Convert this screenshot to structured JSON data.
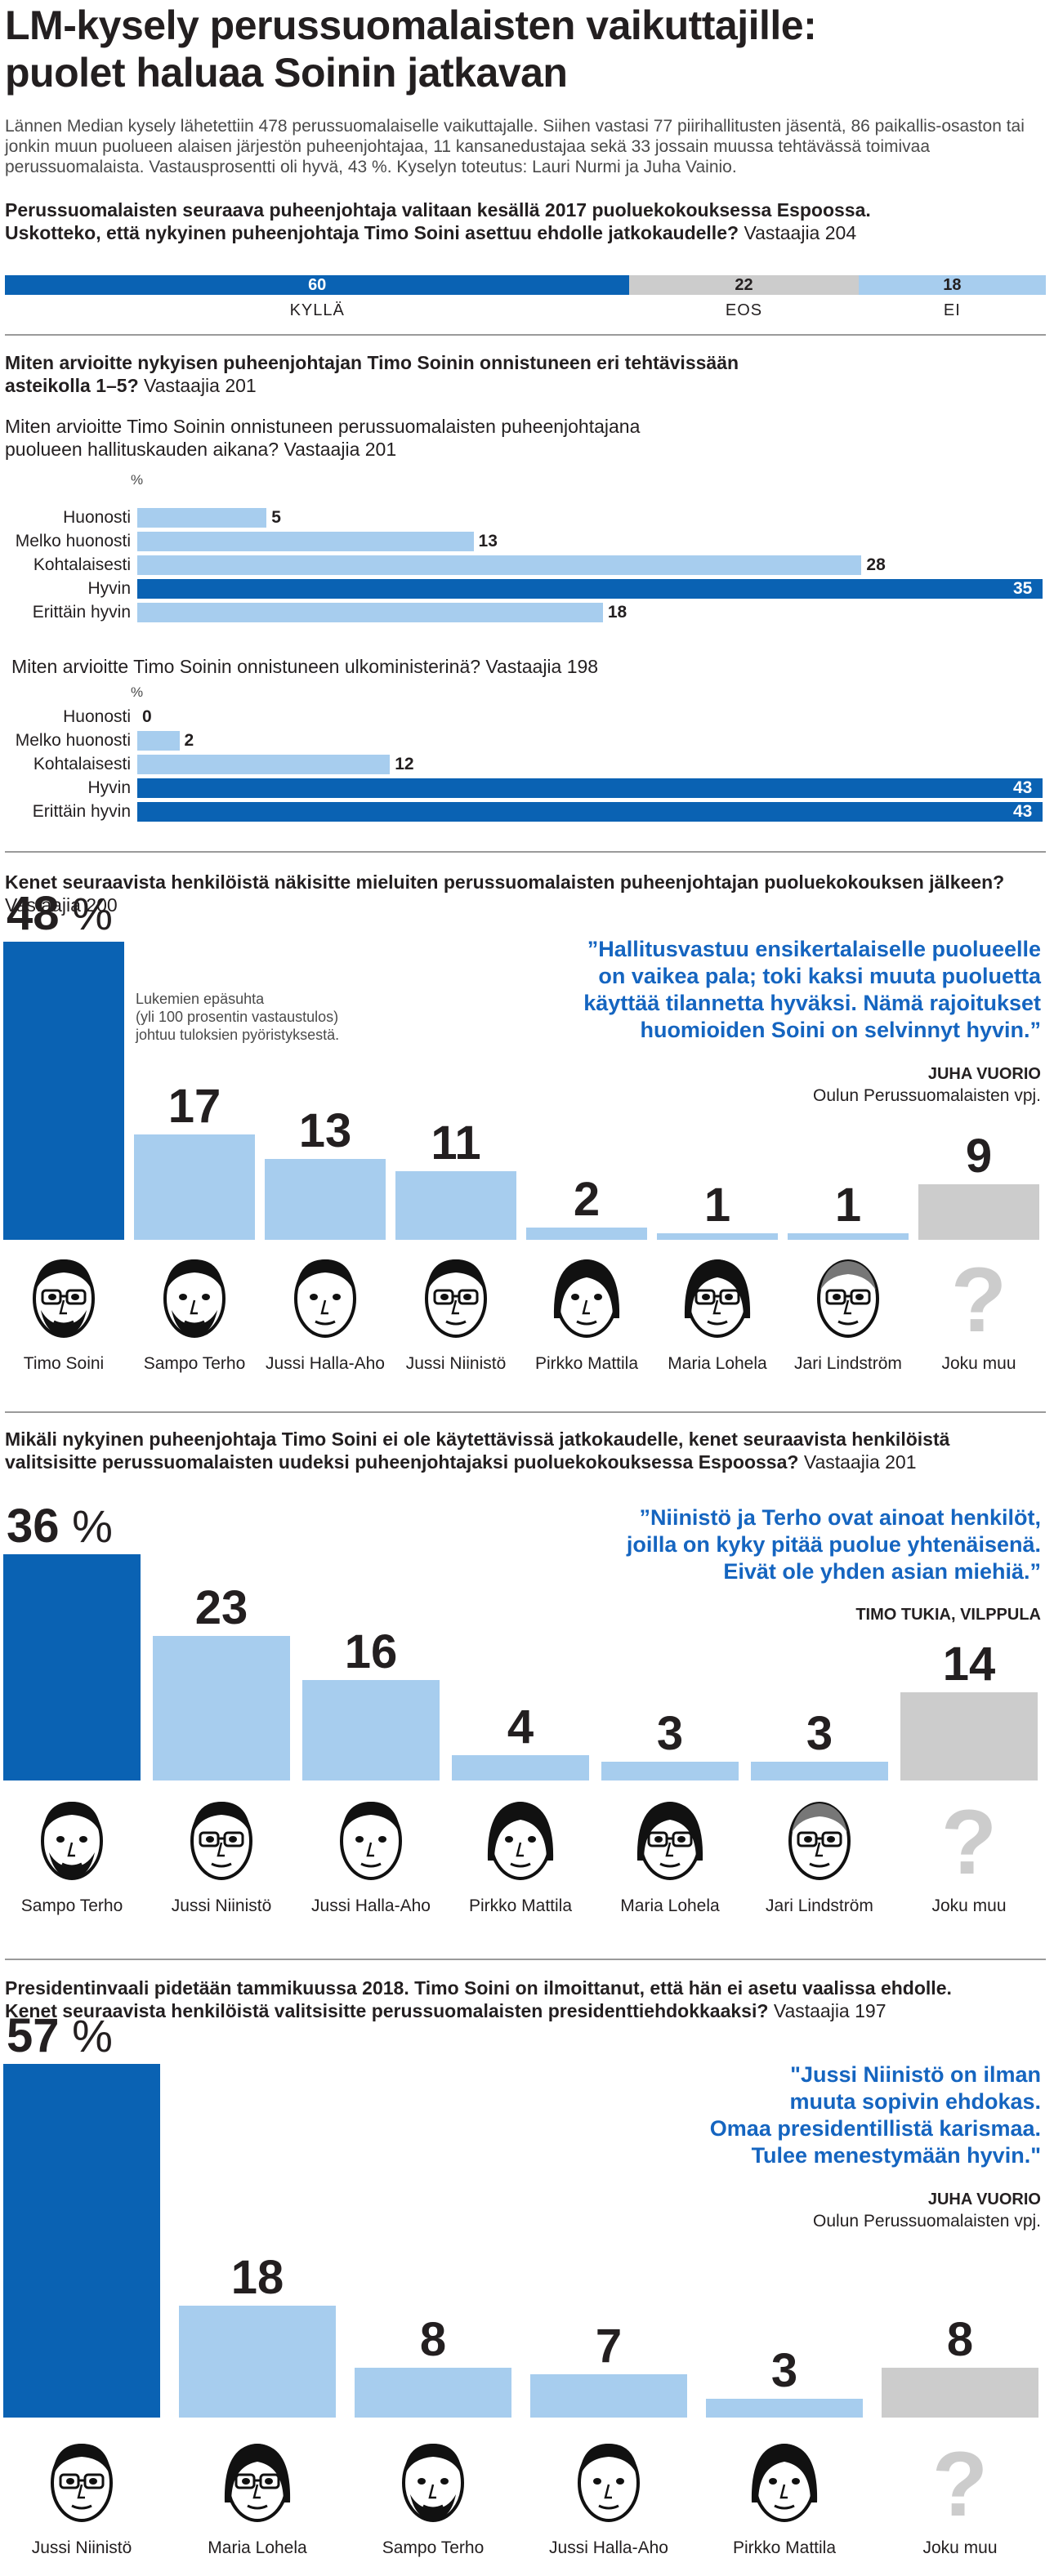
{
  "header": {
    "title_line1": "LM-kysely perussuomalaisten vaikuttajille:",
    "title_line2": "puolet haluaa Soinin jatkavan",
    "intro": "Lännen Median kysely lähetettiin 478 perussuomalaiselle vaikuttajalle. Siihen vastasi 77 piirihallitusten jäsentä, 86 paikallis-osaston tai jonkin muun puolueen alaisen järjestön puheenjohtajaa, 11 kansanedustajaa sekä 33 jossain muussa tehtävässä toimivaa perussuomalaista. Vastausprosentti oli hyvä, 43 %. Kyselyn toteutus: Lauri Nurmi ja Juha Vainio."
  },
  "colors": {
    "dark": "#0a62b3",
    "light": "#a7cdee",
    "grey": "#cccccc",
    "quote": "#1565c0"
  },
  "q1": {
    "line1": "Perussuomalaisten seuraava puheenjohtaja valitaan kesällä 2017 puoluekokouksessa Espoossa.",
    "line2": "Uskotteko, että nykyinen puheenjohtaja Timo Soini asettuu ehdolle jatkokaudelle?",
    "respondents": "Vastaajia 204"
  },
  "q2": {
    "heading1": "Miten arvioitte nykyisen puheenjohtajan Timo Soinin onnistuneen eri tehtävissään",
    "heading2": "asteikolla 1–5?",
    "respondents": "Vastaajia 201",
    "sub_a1": "Miten arvioitte Timo Soinin onnistuneen perussuomalaisten puheenjohtajana",
    "sub_a2": "puolueen hallituskauden aikana?",
    "sub_a_resp": "Vastaajia 201",
    "sub_b1": "Miten arvioitte Timo Soinin onnistuneen ulkoministerinä?",
    "sub_b_resp": "Vastaajia 198",
    "pct_sign": "%"
  },
  "q3": {
    "line1": "Kenet seuraavista henkilöistä näkisitte mieluiten perussuomalaisten puheenjohtajan puoluekokouksen jälkeen?",
    "respondents": "Vastaajia 200",
    "note1": "Lukemien epäsuhta",
    "note2": "(yli 100 prosentin vastaustulos)",
    "note3": "johtuu tuloksien pyöristyksestä.",
    "quote1": "”Hallitusvastuu ensikertalaiselle puolueelle",
    "quote2": "on vaikea pala; toki kaksi muuta puoluetta",
    "quote3": "käyttää tilannetta hyväksi. Nämä rajoitukset",
    "quote4": "huomioiden Soini on selvinnyt hyvin.”",
    "author": "JUHA VUORIO",
    "author_role": "Oulun Perussuomalaisten vpj."
  },
  "q4": {
    "line1": "Mikäli nykyinen puheenjohtaja Timo Soini ei ole käytettävissä jatkokaudelle, kenet seuraavista henkilöistä",
    "line2": "valitsisitte perussuomalaisten uudeksi puheenjohtajaksi puoluekokouksessa Espoossa?",
    "respondents": "Vastaajia 201",
    "quote1": "”Niinistö ja Terho ovat ainoat henkilöt,",
    "quote2": "joilla on kyky pitää puolue yhtenäisenä.",
    "quote3": "Eivät ole yhden asian miehiä.”",
    "author": "TIMO TUKIA, VILPPULA"
  },
  "q5": {
    "line1": "Presidentinvaali pidetään tammikuussa 2018. Timo Soini on ilmoittanut, että hän ei asetu vaalissa ehdolle.",
    "line2": "Kenet seuraavista henkilöistä valitsisitte perussuomalaisten presidenttiehdokkaaksi?",
    "respondents": "Vastaajia 197",
    "quote1": "\"Jussi Niinistö on ilman",
    "quote2": "muuta sopivin ehdokas.",
    "quote3": "Omaa presidentillistä karismaa.",
    "quote4": "Tulee menestymään hyvin.\"",
    "author": "JUHA VUORIO",
    "author_role": "Oulun Perussuomalaisten vpj."
  },
  "chart_data": [
    {
      "id": "q1",
      "type": "bar",
      "stacked": true,
      "orientation": "horizontal",
      "categories": [
        "KYLLÄ",
        "EOS",
        "EI"
      ],
      "values": [
        60,
        22,
        18
      ],
      "colors": [
        "dark",
        "grey",
        "light"
      ]
    },
    {
      "id": "q2a",
      "type": "bar",
      "orientation": "horizontal",
      "ylabel": "%",
      "categories": [
        "Huonosti",
        "Melko huonosti",
        "Kohtalaisesti",
        "Hyvin",
        "Erittäin hyvin"
      ],
      "values": [
        5,
        13,
        28,
        35,
        18
      ],
      "highlight": [
        3
      ]
    },
    {
      "id": "q2b",
      "type": "bar",
      "orientation": "horizontal",
      "ylabel": "%",
      "categories": [
        "Huonosti",
        "Melko huonosti",
        "Kohtalaisesti",
        "Hyvin",
        "Erittäin hyvin"
      ],
      "values": [
        0,
        2,
        12,
        43,
        43
      ],
      "highlight": [
        3,
        4
      ]
    },
    {
      "id": "q3",
      "type": "bar",
      "categories": [
        "Timo Soini",
        "Sampo Terho",
        "Jussi Halla-Aho",
        "Jussi Niinistö",
        "Pirkko Mattila",
        "Maria Lohela",
        "Jari Lindström",
        "Joku muu"
      ],
      "values": [
        48,
        17,
        13,
        11,
        2,
        1,
        1,
        9
      ],
      "unit": "%",
      "colors": [
        "dark",
        "light",
        "light",
        "light",
        "light",
        "light",
        "light",
        "grey"
      ]
    },
    {
      "id": "q4",
      "type": "bar",
      "categories": [
        "Sampo Terho",
        "Jussi Niinistö",
        "Jussi Halla-Aho",
        "Pirkko Mattila",
        "Maria Lohela",
        "Jari Lindström",
        "Joku muu"
      ],
      "values": [
        36,
        23,
        16,
        4,
        3,
        3,
        14
      ],
      "unit": "%",
      "colors": [
        "dark",
        "light",
        "light",
        "light",
        "light",
        "light",
        "grey"
      ]
    },
    {
      "id": "q5",
      "type": "bar",
      "categories": [
        "Jussi Niinistö",
        "Maria Lohela",
        "Sampo Terho",
        "Jussi Halla-Aho",
        "Pirkko Mattila",
        "Joku muu"
      ],
      "values": [
        57,
        18,
        8,
        7,
        3,
        8
      ],
      "unit": "%",
      "colors": [
        "dark",
        "light",
        "light",
        "light",
        "light",
        "grey"
      ]
    }
  ]
}
